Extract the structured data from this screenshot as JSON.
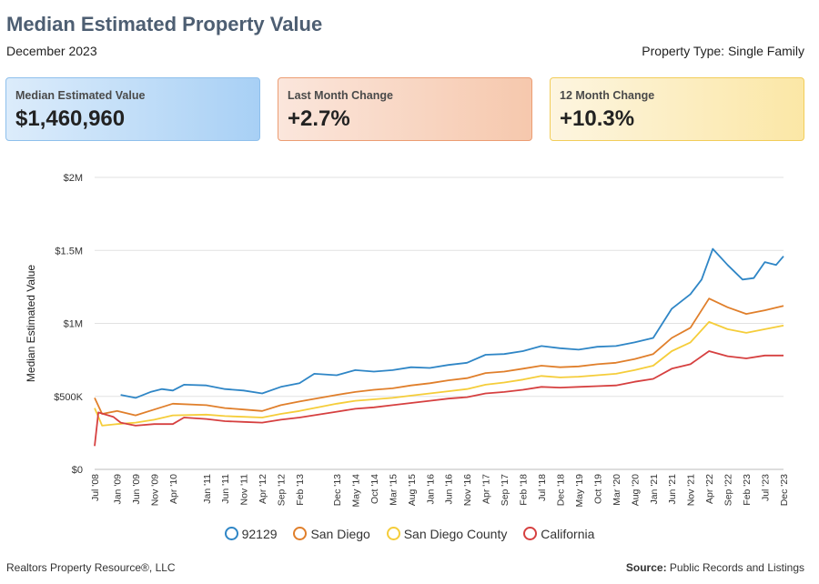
{
  "header": {
    "title": "Median Estimated Property Value",
    "date": "December 2023",
    "property_type": "Property Type: Single Family"
  },
  "cards": [
    {
      "label": "Median Estimated Value",
      "value": "$1,460,960"
    },
    {
      "label": "Last Month Change",
      "value": "+2.7%"
    },
    {
      "label": "12 Month Change",
      "value": "+10.3%"
    }
  ],
  "footer": {
    "left": "Realtors Property Resource®, LLC",
    "right_label": "Source:",
    "right_value": "Public Records and Listings"
  },
  "colors": {
    "92129": "#2f86c6",
    "San Diego": "#e07f2b",
    "San Diego County": "#f5cd3a",
    "California": "#d64040"
  },
  "chart_data": {
    "type": "line",
    "ylabel": "Median Estimated Value",
    "xlabel": "",
    "ylim": [
      0,
      2000000
    ],
    "y_ticks": [
      0,
      500000,
      1000000,
      1500000,
      2000000
    ],
    "y_tick_labels": [
      "$0",
      "$500K",
      "$1M",
      "$1.5M",
      "$2M"
    ],
    "x_range": [
      "2008-07",
      "2023-12"
    ],
    "x_ticks": [
      "Jul '08",
      "Jan '09",
      "Jun '09",
      "Nov '09",
      "Apr '10",
      "Jan '11",
      "Jun '11",
      "Nov '11",
      "Apr '12",
      "Sep '12",
      "Feb '13",
      "Dec '13",
      "May '14",
      "Oct '14",
      "Mar '15",
      "Aug '15",
      "Jan '16",
      "Jun '16",
      "Nov '16",
      "Apr '17",
      "Sep '17",
      "Feb '18",
      "Jul '18",
      "Dec '18",
      "May '19",
      "Oct '19",
      "Mar '20",
      "Aug '20",
      "Jan '21",
      "Jun '21",
      "Nov '21",
      "Apr '22",
      "Sep '22",
      "Feb '23",
      "Jul '23",
      "Dec '23"
    ],
    "x_tick_dates": [
      "2008-07",
      "2009-01",
      "2009-06",
      "2009-11",
      "2010-04",
      "2011-01",
      "2011-06",
      "2011-11",
      "2012-04",
      "2012-09",
      "2013-02",
      "2013-12",
      "2014-05",
      "2014-10",
      "2015-03",
      "2015-08",
      "2016-01",
      "2016-06",
      "2016-11",
      "2017-04",
      "2017-09",
      "2018-02",
      "2018-07",
      "2018-12",
      "2019-05",
      "2019-10",
      "2020-03",
      "2020-08",
      "2021-01",
      "2021-06",
      "2021-11",
      "2022-04",
      "2022-09",
      "2023-02",
      "2023-07",
      "2023-12"
    ],
    "grid": true,
    "legend_position": "bottom",
    "series": [
      {
        "name": "92129",
        "points": [
          [
            "2009-02",
            510000
          ],
          [
            "2009-06",
            490000
          ],
          [
            "2009-10",
            530000
          ],
          [
            "2010-01",
            550000
          ],
          [
            "2010-04",
            540000
          ],
          [
            "2010-07",
            580000
          ],
          [
            "2011-01",
            575000
          ],
          [
            "2011-06",
            550000
          ],
          [
            "2011-11",
            540000
          ],
          [
            "2012-04",
            520000
          ],
          [
            "2012-09",
            565000
          ],
          [
            "2013-02",
            590000
          ],
          [
            "2013-06",
            655000
          ],
          [
            "2013-12",
            645000
          ],
          [
            "2014-05",
            680000
          ],
          [
            "2014-10",
            670000
          ],
          [
            "2015-03",
            680000
          ],
          [
            "2015-08",
            700000
          ],
          [
            "2016-01",
            695000
          ],
          [
            "2016-06",
            715000
          ],
          [
            "2016-11",
            730000
          ],
          [
            "2017-04",
            785000
          ],
          [
            "2017-09",
            790000
          ],
          [
            "2018-02",
            810000
          ],
          [
            "2018-07",
            845000
          ],
          [
            "2018-12",
            830000
          ],
          [
            "2019-05",
            820000
          ],
          [
            "2019-10",
            840000
          ],
          [
            "2020-03",
            845000
          ],
          [
            "2020-08",
            870000
          ],
          [
            "2021-01",
            900000
          ],
          [
            "2021-06",
            1100000
          ],
          [
            "2021-11",
            1200000
          ],
          [
            "2022-02",
            1300000
          ],
          [
            "2022-05",
            1510000
          ],
          [
            "2022-09",
            1400000
          ],
          [
            "2023-01",
            1300000
          ],
          [
            "2023-04",
            1310000
          ],
          [
            "2023-07",
            1420000
          ],
          [
            "2023-10",
            1400000
          ],
          [
            "2023-12",
            1460000
          ]
        ]
      },
      {
        "name": "San Diego",
        "points": [
          [
            "2008-07",
            490000
          ],
          [
            "2008-09",
            380000
          ],
          [
            "2009-01",
            400000
          ],
          [
            "2009-06",
            370000
          ],
          [
            "2009-11",
            410000
          ],
          [
            "2010-04",
            450000
          ],
          [
            "2011-01",
            440000
          ],
          [
            "2011-06",
            420000
          ],
          [
            "2011-11",
            410000
          ],
          [
            "2012-04",
            400000
          ],
          [
            "2012-09",
            440000
          ],
          [
            "2013-02",
            465000
          ],
          [
            "2013-12",
            510000
          ],
          [
            "2014-05",
            530000
          ],
          [
            "2014-10",
            545000
          ],
          [
            "2015-03",
            555000
          ],
          [
            "2015-08",
            575000
          ],
          [
            "2016-01",
            590000
          ],
          [
            "2016-06",
            610000
          ],
          [
            "2016-11",
            625000
          ],
          [
            "2017-04",
            660000
          ],
          [
            "2017-09",
            670000
          ],
          [
            "2018-02",
            690000
          ],
          [
            "2018-07",
            710000
          ],
          [
            "2018-12",
            700000
          ],
          [
            "2019-05",
            705000
          ],
          [
            "2019-10",
            720000
          ],
          [
            "2020-03",
            730000
          ],
          [
            "2020-08",
            755000
          ],
          [
            "2021-01",
            790000
          ],
          [
            "2021-06",
            900000
          ],
          [
            "2021-11",
            970000
          ],
          [
            "2022-04",
            1170000
          ],
          [
            "2022-09",
            1110000
          ],
          [
            "2023-02",
            1065000
          ],
          [
            "2023-07",
            1090000
          ],
          [
            "2023-12",
            1120000
          ]
        ]
      },
      {
        "name": "San Diego County",
        "points": [
          [
            "2008-07",
            420000
          ],
          [
            "2008-09",
            300000
          ],
          [
            "2009-01",
            310000
          ],
          [
            "2009-06",
            320000
          ],
          [
            "2009-11",
            340000
          ],
          [
            "2010-04",
            370000
          ],
          [
            "2011-01",
            375000
          ],
          [
            "2011-06",
            365000
          ],
          [
            "2011-11",
            360000
          ],
          [
            "2012-04",
            355000
          ],
          [
            "2012-09",
            380000
          ],
          [
            "2013-02",
            400000
          ],
          [
            "2013-12",
            450000
          ],
          [
            "2014-05",
            470000
          ],
          [
            "2014-10",
            480000
          ],
          [
            "2015-03",
            490000
          ],
          [
            "2015-08",
            505000
          ],
          [
            "2016-01",
            520000
          ],
          [
            "2016-06",
            535000
          ],
          [
            "2016-11",
            550000
          ],
          [
            "2017-04",
            580000
          ],
          [
            "2017-09",
            595000
          ],
          [
            "2018-02",
            615000
          ],
          [
            "2018-07",
            640000
          ],
          [
            "2018-12",
            630000
          ],
          [
            "2019-05",
            635000
          ],
          [
            "2019-10",
            645000
          ],
          [
            "2020-03",
            655000
          ],
          [
            "2020-08",
            680000
          ],
          [
            "2021-01",
            710000
          ],
          [
            "2021-06",
            810000
          ],
          [
            "2021-11",
            870000
          ],
          [
            "2022-04",
            1010000
          ],
          [
            "2022-09",
            960000
          ],
          [
            "2023-02",
            935000
          ],
          [
            "2023-07",
            960000
          ],
          [
            "2023-12",
            985000
          ]
        ]
      },
      {
        "name": "California",
        "points": [
          [
            "2008-07",
            160000
          ],
          [
            "2008-08",
            390000
          ],
          [
            "2008-12",
            360000
          ],
          [
            "2009-02",
            320000
          ],
          [
            "2009-06",
            300000
          ],
          [
            "2009-11",
            310000
          ],
          [
            "2010-04",
            310000
          ],
          [
            "2010-07",
            355000
          ],
          [
            "2011-01",
            345000
          ],
          [
            "2011-06",
            330000
          ],
          [
            "2011-11",
            325000
          ],
          [
            "2012-04",
            320000
          ],
          [
            "2012-09",
            340000
          ],
          [
            "2013-02",
            355000
          ],
          [
            "2013-12",
            395000
          ],
          [
            "2014-05",
            415000
          ],
          [
            "2014-10",
            425000
          ],
          [
            "2015-03",
            440000
          ],
          [
            "2015-08",
            455000
          ],
          [
            "2016-01",
            470000
          ],
          [
            "2016-06",
            485000
          ],
          [
            "2016-11",
            495000
          ],
          [
            "2017-04",
            520000
          ],
          [
            "2017-09",
            530000
          ],
          [
            "2018-02",
            545000
          ],
          [
            "2018-07",
            565000
          ],
          [
            "2018-12",
            560000
          ],
          [
            "2019-05",
            565000
          ],
          [
            "2019-10",
            570000
          ],
          [
            "2020-03",
            575000
          ],
          [
            "2020-08",
            600000
          ],
          [
            "2021-01",
            620000
          ],
          [
            "2021-06",
            690000
          ],
          [
            "2021-11",
            720000
          ],
          [
            "2022-04",
            810000
          ],
          [
            "2022-09",
            775000
          ],
          [
            "2023-02",
            760000
          ],
          [
            "2023-07",
            780000
          ],
          [
            "2023-12",
            780000
          ]
        ]
      }
    ]
  }
}
